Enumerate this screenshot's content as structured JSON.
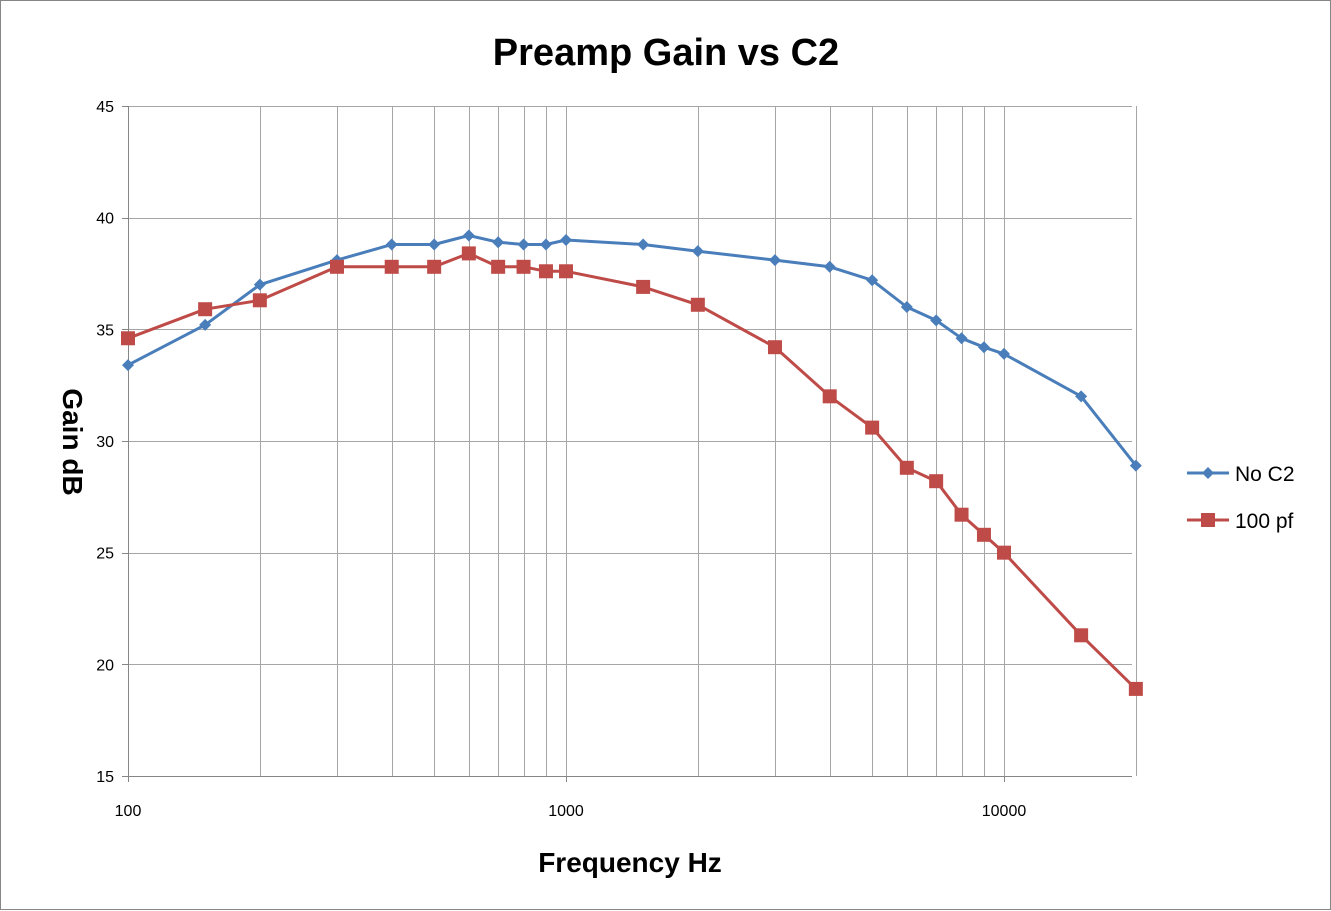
{
  "chart_data": {
    "type": "line",
    "title": "Preamp Gain vs C2",
    "xlabel": "Frequency Hz",
    "ylabel": "Gain dB",
    "x_scale": "log",
    "xlim": [
      100,
      20000
    ],
    "ylim": [
      15,
      45
    ],
    "x_tick_labels": [
      "100",
      "1000",
      "10000"
    ],
    "y_tick_labels": [
      "15",
      "20",
      "25",
      "30",
      "35",
      "40",
      "45"
    ],
    "grid": true,
    "legend_position": "right",
    "series": [
      {
        "name": "No C2",
        "color": "#4a7ebb",
        "marker": "diamond",
        "x": [
          100,
          150,
          200,
          300,
          400,
          500,
          600,
          700,
          800,
          900,
          1000,
          1500,
          2000,
          3000,
          4000,
          5000,
          6000,
          7000,
          8000,
          9000,
          10000,
          15000,
          20000
        ],
        "y": [
          33.4,
          35.2,
          37.0,
          38.1,
          38.8,
          38.8,
          39.2,
          38.9,
          38.8,
          38.8,
          39.0,
          38.8,
          38.5,
          38.1,
          37.8,
          37.2,
          36.0,
          35.4,
          34.6,
          34.2,
          33.9,
          32.0,
          28.9
        ]
      },
      {
        "name": "100 pf",
        "color": "#be4b48",
        "marker": "square",
        "x": [
          100,
          150,
          200,
          300,
          400,
          500,
          600,
          700,
          800,
          900,
          1000,
          1500,
          2000,
          3000,
          4000,
          5000,
          6000,
          7000,
          8000,
          9000,
          10000,
          15000,
          20000
        ],
        "y": [
          34.6,
          35.9,
          36.3,
          37.8,
          37.8,
          37.8,
          38.4,
          37.8,
          37.8,
          37.6,
          37.6,
          36.9,
          36.1,
          34.2,
          32.0,
          30.6,
          28.8,
          28.2,
          26.7,
          25.8,
          25.0,
          21.3,
          18.9
        ]
      }
    ]
  }
}
